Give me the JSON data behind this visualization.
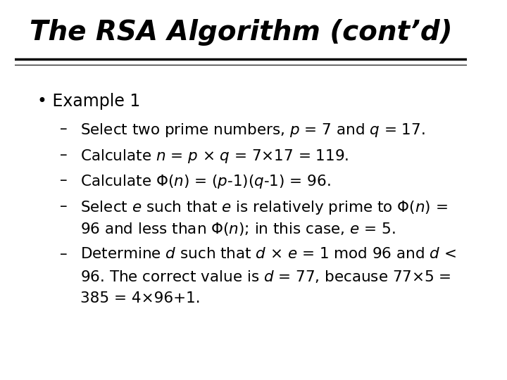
{
  "title": "The RSA Algorithm (cont’d)",
  "background_color": "#ffffff",
  "title_color": "#000000",
  "text_color": "#000000",
  "title_fontsize": 28,
  "bullet_fontsize": 17,
  "sub_fontsize": 15.5,
  "bullet": "Example 1",
  "items": [
    "Select two prime numbers, $p$ = 7 and $q$ = 17.",
    "Calculate $n$ = $p$ × $q$ = 7×17 = 119.",
    "Calculate Φ($n$) = ($p$-1)($q$-1) = 96.",
    "Select $e$ such that $e$ is relatively prime to Φ($n$) =\n96 and less than Φ($n$); in this case, $e$ = 5.",
    "Determine $d$ such that $d$ × $e$ = 1 mod 96 and $d$ <\n96. The correct value is $d$ = 77, because 77×5 =\n385 = 4×96+1."
  ]
}
